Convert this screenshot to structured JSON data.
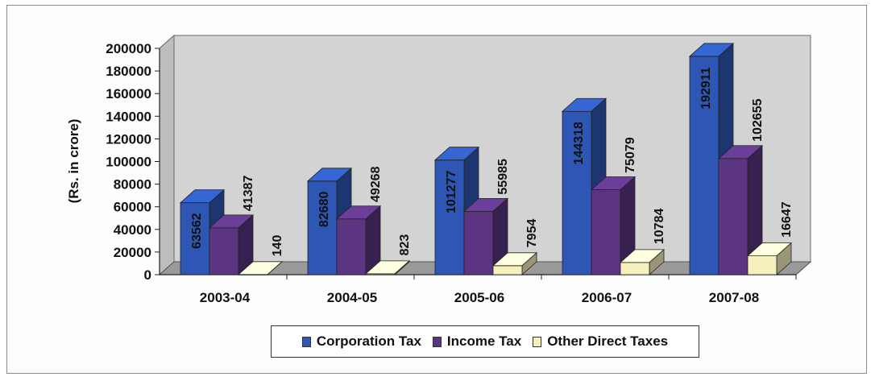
{
  "chart_data": {
    "type": "bar",
    "style": "3d-clustered-column",
    "title": "",
    "xlabel": "",
    "ylabel": "(Rs. in crore)",
    "ylim": [
      0,
      200000
    ],
    "yticks": [
      "0",
      "20000",
      "40000",
      "60000",
      "80000",
      "100000",
      "120000",
      "140000",
      "160000",
      "180000",
      "200000"
    ],
    "categories": [
      "2003-04",
      "2004-05",
      "2005-06",
      "2006-07",
      "2007-08"
    ],
    "series": [
      {
        "name": "Corporation Tax",
        "values": [
          63562,
          82680,
          101277,
          144318,
          192911
        ],
        "color": "#2e56b4"
      },
      {
        "name": "Income Tax",
        "values": [
          41387,
          49268,
          55985,
          75079,
          102655
        ],
        "color": "#5b3582"
      },
      {
        "name": "Other Direct Taxes",
        "values": [
          140,
          823,
          7954,
          10784,
          16647
        ],
        "color": "#f6f0bf"
      }
    ],
    "grid": false,
    "legend": "bottom",
    "wall_color": "#d3d3d3"
  }
}
